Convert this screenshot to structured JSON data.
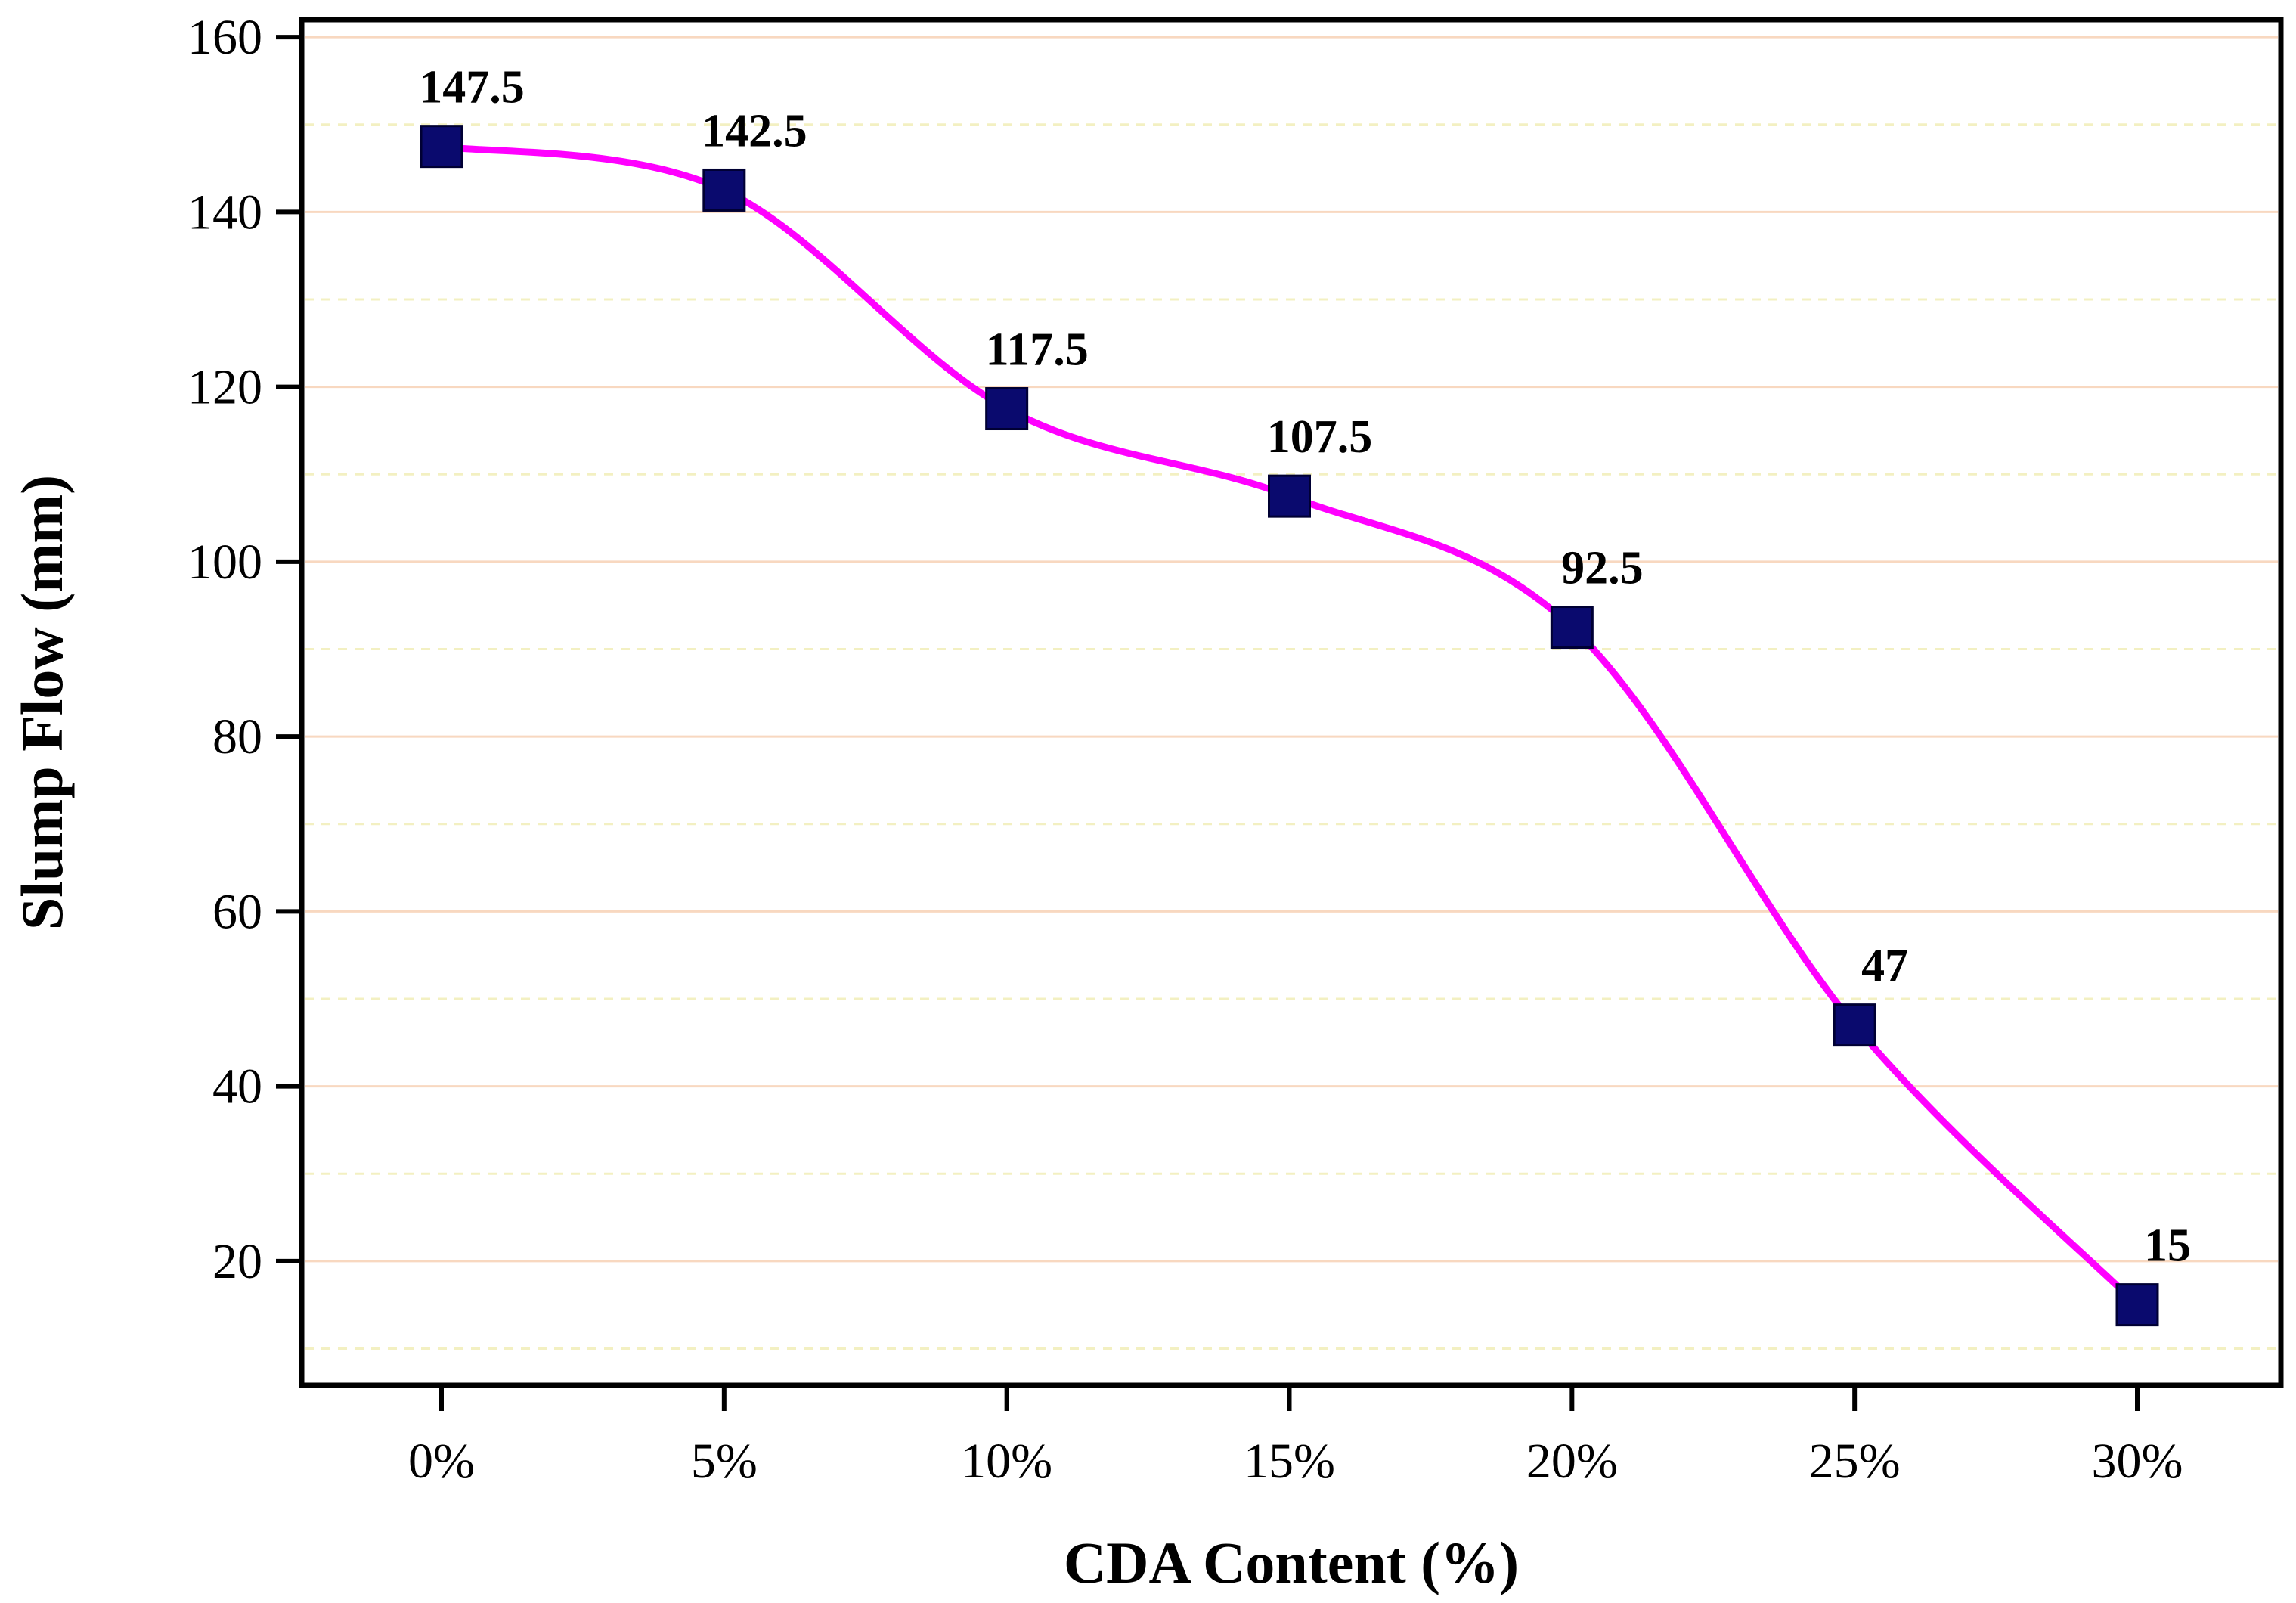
{
  "chart_data": {
    "type": "line",
    "title": "",
    "xlabel": "CDA Content (%)",
    "ylabel": "Slump Flow (mm)",
    "categories": [
      "0%",
      "5%",
      "10%",
      "15%",
      "20%",
      "25%",
      "30%"
    ],
    "series": [
      {
        "name": "Slump Flow",
        "values": [
          147.5,
          142.5,
          117.5,
          107.5,
          92.5,
          47,
          15
        ],
        "data_labels": [
          "147.5",
          "142.5",
          "117.5",
          "107.5",
          "92.5",
          "47",
          "15"
        ],
        "line_color": "#ff00ff",
        "marker_color": "#0a0a6e",
        "marker": "square",
        "smooth": true
      }
    ],
    "ylim": [
      5.8,
      162
    ],
    "yticks": [
      20,
      40,
      60,
      80,
      100,
      120,
      140,
      160
    ],
    "ytick_labels": [
      "20",
      "40",
      "60",
      "80",
      "100",
      "120",
      "140",
      "160"
    ],
    "grid": {
      "major": true,
      "major_color": "#f8d8c0",
      "minor": true,
      "minor_color": "#f3f0c2",
      "minor_style": "dashed"
    },
    "legend": "none"
  }
}
